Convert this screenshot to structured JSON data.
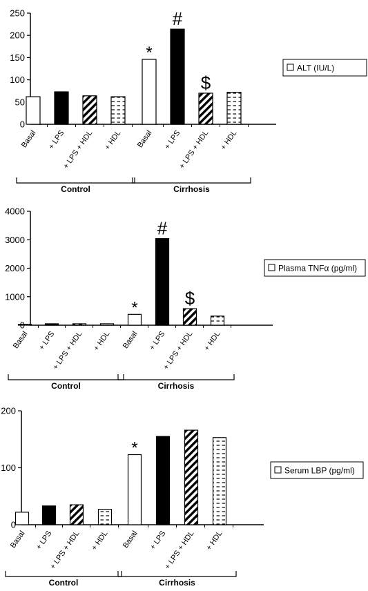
{
  "chart_data": [
    {
      "type": "bar",
      "legend": "ALT (IU/L)",
      "legend_placement": "right",
      "categories": [
        "Basal",
        "+ LPS",
        "+ LPS + HDL",
        "+ HDL",
        "Basal",
        "+ LPS",
        "+ LPS + HDL",
        "+ HDL"
      ],
      "groups": [
        {
          "label": "Control",
          "start": 0,
          "end": 3
        },
        {
          "label": "Cirrhosis",
          "start": 4,
          "end": 7
        }
      ],
      "values": [
        62,
        73,
        64,
        62,
        146,
        214,
        70,
        72
      ],
      "annotations": [
        "",
        "",
        "",
        "",
        "*",
        "#",
        "$",
        ""
      ],
      "patterns": [
        "white",
        "black",
        "diag",
        "dash",
        "white",
        "black",
        "diag",
        "dash"
      ],
      "ylim": [
        0,
        250
      ],
      "yticks": [
        0,
        50,
        100,
        150,
        200,
        250
      ],
      "grid": false
    },
    {
      "type": "bar",
      "legend": "Plasma TNFα (pg/ml)",
      "legend_placement": "right",
      "categories": [
        "Basal",
        "+ LPS",
        "+ LPS + HDL",
        "+ HDL",
        "Basal",
        "+ LPS",
        "+ LPS + HDL",
        "+ HDL"
      ],
      "groups": [
        {
          "label": "Control",
          "start": 0,
          "end": 3
        },
        {
          "label": "Cirrhosis",
          "start": 4,
          "end": 7
        }
      ],
      "values": [
        30,
        50,
        50,
        50,
        380,
        3040,
        580,
        320
      ],
      "annotations": [
        "",
        "",
        "",
        "",
        "*",
        "#",
        "$",
        ""
      ],
      "patterns": [
        "white",
        "black",
        "diag",
        "dash",
        "white",
        "black",
        "diag",
        "dash"
      ],
      "ylim": [
        0,
        4000
      ],
      "yticks": [
        0,
        1000,
        2000,
        3000,
        4000
      ],
      "grid": false
    },
    {
      "type": "bar",
      "legend": "Serum LBP (pg/ml)",
      "legend_placement": "right",
      "categories": [
        "Basal",
        "+ LPS",
        "+ LPS + HDL",
        "+ HDL",
        "Basal",
        "+ LPS",
        "+ LPS + HDL",
        "+ HDL"
      ],
      "groups": [
        {
          "label": "Control",
          "start": 0,
          "end": 3
        },
        {
          "label": "Cirrhosis",
          "start": 4,
          "end": 7
        }
      ],
      "values": [
        22,
        33,
        35,
        27,
        123,
        155,
        166,
        153
      ],
      "annotations": [
        "",
        "",
        "",
        "",
        "*",
        "",
        "",
        ""
      ],
      "patterns": [
        "white",
        "black",
        "diag",
        "dash",
        "white",
        "black",
        "diag",
        "dash"
      ],
      "ylim": [
        0,
        200
      ],
      "yticks": [
        0,
        100,
        200
      ],
      "grid": false
    }
  ]
}
